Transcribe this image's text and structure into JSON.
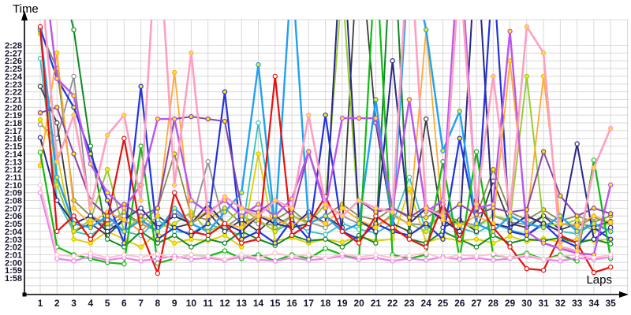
{
  "chart": {
    "y_axis_title": "Time",
    "x_axis_title": "Laps"
  },
  "chart_data": {
    "type": "line",
    "title": "",
    "xlabel": "Laps",
    "ylabel": "Time",
    "grid": true,
    "legend": "none",
    "x": [
      1,
      2,
      3,
      4,
      5,
      6,
      7,
      8,
      9,
      10,
      11,
      12,
      13,
      14,
      15,
      16,
      17,
      18,
      19,
      20,
      21,
      22,
      23,
      24,
      25,
      26,
      27,
      28,
      29,
      30,
      31,
      32,
      33,
      34,
      35
    ],
    "y_tick_labels": [
      "1:58",
      "1:59",
      "2:00",
      "2:01",
      "2:02",
      "2:03",
      "2:04",
      "2:05",
      "2:06",
      "2:07",
      "2:08",
      "2:09",
      "2:10",
      "2:11",
      "2:12",
      "2:13",
      "2:14",
      "2:15",
      "2:16",
      "2:17",
      "2:18",
      "2:19",
      "2:20",
      "2:21",
      "2:22",
      "2:23",
      "2:24",
      "2:25",
      "2:26",
      "2:27",
      "2:28"
    ],
    "y_min_seconds": 118,
    "y_max_seconds": 148,
    "values_unit": "seconds",
    "series": [
      {
        "name": "gray",
        "color": "#909090",
        "marker": "#ffffff",
        "width": 1.8,
        "values": [
          137.8,
          136,
          144,
          126,
          124.5,
          126,
          125,
          124,
          126.5,
          125,
          133,
          124.5,
          126,
          125,
          124.8,
          126,
          125.2,
          124.5,
          126,
          125,
          124.6,
          126.2,
          125,
          124.8,
          126,
          125.4,
          124.7,
          126,
          125.2,
          124.9,
          126,
          125,
          124.6,
          125.8,
          125
        ]
      },
      {
        "name": "yellow",
        "color": "#ddcc00",
        "marker": "#ffe800",
        "width": 1.8,
        "values": [
          138.4,
          134,
          123,
          122.5,
          124,
          123,
          122,
          123.8,
          122.5,
          123,
          122.8,
          123.5,
          122,
          134,
          122.8,
          123.2,
          122.5,
          123,
          122.6,
          123.4,
          122.8,
          123,
          129.5,
          122.6,
          123.2,
          122.8,
          123,
          122.5,
          123.4,
          122.7,
          123.1,
          122.6,
          123,
          122.8,
          123
        ]
      },
      {
        "name": "teal",
        "color": "#33c0c0",
        "marker": "#ffffff",
        "width": 1.8,
        "values": [
          146.3,
          128,
          124,
          123.5,
          125,
          124,
          123.5,
          125.5,
          124,
          123.8,
          125,
          124.2,
          123.5,
          138,
          124,
          125.2,
          124,
          123.6,
          125,
          124.3,
          123.8,
          125,
          131,
          124,
          127.5,
          124.5,
          123.8,
          125,
          124.2,
          123.6,
          125.1,
          124,
          123.7,
          125,
          124
        ]
      },
      {
        "name": "olive",
        "color": "#8a8a50",
        "marker": "#ffe800",
        "width": 1.8,
        "values": [
          149.9,
          145,
          128,
          126,
          125,
          126.5,
          125,
          127,
          134,
          126,
          125.5,
          127,
          125,
          126,
          125.5,
          126.8,
          125,
          126,
          127.5,
          126,
          125.5,
          127,
          126,
          125.8,
          127,
          162,
          126,
          132,
          126.5,
          125.5,
          126.8,
          125.4,
          126,
          125.2,
          126
        ]
      },
      {
        "name": "black",
        "color": "#3a3a3a",
        "marker": "#ffffff",
        "width": 1.8,
        "values": [
          142.7,
          138,
          124,
          125,
          123.5,
          125.5,
          124,
          126,
          124.5,
          125,
          126.5,
          124,
          125.5,
          124,
          126,
          124.5,
          125,
          126,
          124.5,
          163,
          138,
          125,
          124,
          138.5,
          124.5,
          125.5,
          124,
          130.5,
          125,
          124.5,
          126,
          124.2,
          125,
          124.6,
          125.3
        ]
      },
      {
        "name": "darkgreen",
        "color": "#118822",
        "marker": "#ffffff",
        "width": 2,
        "values": [
          168,
          159,
          150,
          135,
          123,
          122,
          124,
          122.5,
          123.5,
          122,
          123,
          122.5,
          124,
          123,
          122.2,
          123.5,
          122.8,
          123,
          122,
          123.5,
          122.5,
          165,
          123,
          122.5,
          124,
          123,
          122,
          123.5,
          122.5,
          123,
          122.8,
          123.2,
          122.5,
          123,
          122.4
        ]
      },
      {
        "name": "yellowgreen",
        "color": "#99cc33",
        "marker": "#ffe800",
        "width": 2,
        "values": [
          149.5,
          130,
          124,
          125.5,
          132,
          124,
          126,
          124.5,
          125,
          126.5,
          124,
          125,
          127,
          125.5,
          124,
          126,
          125,
          127.5,
          156,
          125,
          124.5,
          126,
          125,
          124,
          126.5,
          125,
          124.5,
          126,
          125.5,
          144,
          125,
          124.8,
          125.5,
          124,
          125.2
        ]
      },
      {
        "name": "navy",
        "color": "#282888",
        "marker": "#ffffff",
        "width": 2,
        "values": [
          136.1,
          128,
          125,
          126,
          124,
          125.5,
          127,
          124.5,
          126,
          125,
          127.5,
          125,
          124,
          126,
          125,
          124.5,
          126.5,
          125,
          163,
          125.5,
          124,
          146,
          125,
          127,
          125.5,
          124,
          162,
          125,
          124.5,
          126,
          125,
          124,
          135.3,
          123,
          124.5
        ]
      },
      {
        "name": "blue",
        "color": "#2233dd",
        "marker": "#ffe800",
        "width": 2.2,
        "values": [
          150.2,
          143.7,
          140,
          134,
          128,
          122.5,
          142.7,
          123,
          124.5,
          123.5,
          125,
          142,
          123,
          124,
          122.5,
          125.5,
          123,
          139,
          124,
          123,
          125,
          124,
          123.5,
          125,
          123,
          136,
          125,
          158,
          124,
          123.5,
          125,
          123,
          122,
          124.5,
          123
        ]
      },
      {
        "name": "orange",
        "color": "#ffaa33",
        "marker": "#ffe800",
        "width": 1.8,
        "values": [
          132.5,
          147,
          127,
          125,
          126.5,
          125.5,
          124,
          126,
          144.5,
          125,
          126.8,
          125,
          124.5,
          126,
          125.5,
          124.8,
          126,
          125,
          127,
          125.5,
          124.5,
          126,
          125,
          150,
          125.5,
          124.8,
          126,
          125,
          146,
          125.5,
          144,
          125,
          124.8,
          126,
          125.2
        ]
      },
      {
        "name": "dodgerblue",
        "color": "#22a0f0",
        "marker": "#ffe800",
        "width": 2.4,
        "values": [
          150,
          131,
          125,
          124.5,
          126,
          124,
          125.5,
          124,
          127,
          125,
          124,
          126.5,
          129,
          145.5,
          124.5,
          158,
          125,
          126,
          124,
          125,
          141,
          124.5,
          160,
          150,
          134.4,
          139.5,
          125,
          124,
          126,
          125,
          124.5,
          126,
          124,
          125,
          124
        ]
      },
      {
        "name": "green",
        "color": "#11bb11",
        "marker": "#ffffff",
        "width": 2.2,
        "values": [
          134.2,
          122,
          121,
          120.5,
          120,
          119.8,
          135,
          119.9,
          120.5,
          121,
          120.8,
          121.5,
          120.5,
          121,
          120.2,
          121,
          120.5,
          121.8,
          121,
          120.5,
          160,
          121,
          120.5,
          121,
          133,
          120.5,
          134.3,
          121,
          120.6,
          121.2,
          120.4,
          121,
          120.2,
          133.2,
          120.5
        ]
      },
      {
        "name": "red",
        "color": "#e81010",
        "marker": "#ffffff",
        "width": 2.2,
        "values": [
          150.4,
          124,
          126,
          123,
          125.5,
          136,
          124,
          118.6,
          129,
          124,
          123.5,
          125,
          122.5,
          123,
          144,
          123.5,
          125,
          128.5,
          124,
          122.5,
          126,
          124.5,
          123,
          122,
          127.5,
          123,
          128,
          124.5,
          122,
          119.2,
          119,
          123.5,
          122.5,
          118.7,
          119.4
        ]
      },
      {
        "name": "purple",
        "color": "#8844aa",
        "marker": "#ffe800",
        "width": 2,
        "values": [
          139.3,
          140,
          134,
          128,
          126,
          127.5,
          126,
          127,
          138.5,
          138.8,
          138.5,
          138.2,
          127,
          126.5,
          128,
          126,
          134.3,
          127.5,
          126,
          128,
          126.5,
          127,
          125.8,
          127.2,
          126,
          127.5,
          126.2,
          127,
          126.5,
          126.8,
          134.3,
          128.6,
          126,
          127,
          126.3
        ]
      },
      {
        "name": "orchid",
        "color": "#bb55ee",
        "marker": "#ffe800",
        "width": 2.4,
        "values": [
          162,
          143.7,
          141.5,
          132.7,
          129,
          127,
          130,
          138.5,
          138.5,
          128,
          126.5,
          128,
          126,
          127.5,
          126,
          128.2,
          134.3,
          127,
          138.6,
          138.6,
          138.6,
          127,
          141,
          126.5,
          128,
          162,
          127,
          127.5,
          149.8,
          124,
          122.5,
          121.8,
          121.2,
          121,
          130
        ]
      },
      {
        "name": "violet",
        "color": "#ee82ee",
        "marker": "#ffffff",
        "width": 2.2,
        "values": [
          129,
          120.5,
          120.2,
          120.8,
          120.3,
          120.6,
          120.2,
          120.5,
          120.8,
          120.4,
          120.6,
          120.3,
          120.7,
          120.4,
          120.2,
          120.6,
          120.3,
          120.5,
          120.8,
          120.4,
          120.6,
          120.2,
          120.5,
          120.3,
          120.7,
          120.4,
          120.6,
          120.3,
          120.5,
          120.8,
          120.4,
          120.2,
          120.6,
          120.4,
          120.7
        ]
      },
      {
        "name": "lightpink",
        "color": "#ffc0d0",
        "marker": "#ffffff",
        "width": 2,
        "values": [
          130,
          121,
          120.8,
          121.2,
          120.6,
          121,
          120.7,
          121.1,
          120.5,
          121,
          120.8,
          120.4,
          121,
          120.6,
          121.2,
          120.8,
          121,
          120.5,
          121.1,
          120.7,
          121,
          120.6,
          120.9,
          121.2,
          120.5,
          121,
          120.8,
          121.1,
          120.6,
          121,
          120.4,
          120.8,
          121,
          120.6,
          121
        ]
      },
      {
        "name": "pink",
        "color": "#ff9fc0",
        "marker": "#ffe800",
        "width": 2.6,
        "values": [
          158,
          133,
          139,
          127,
          136.4,
          139,
          128,
          165,
          130,
          147,
          126,
          128.5,
          127,
          126,
          128,
          127,
          139,
          127.5,
          126,
          128,
          127,
          126.5,
          163,
          127,
          126,
          158,
          127.5,
          144,
          126.5,
          150.4,
          147,
          122,
          121.5,
          132.2,
          137.3
        ]
      }
    ]
  },
  "style": {
    "grid_color": "#d8d8d8",
    "axis_color": "#000000",
    "tick_label_color": "#14142e",
    "background": "#ffffff",
    "marker_yellow": "#ffe800"
  }
}
